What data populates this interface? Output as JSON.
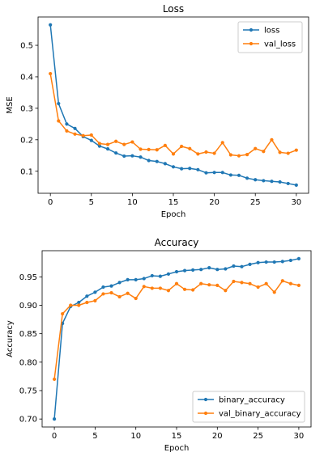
{
  "chart_data": [
    {
      "type": "line",
      "title": "Loss",
      "xlabel": "Epoch",
      "ylabel": "MSE",
      "xlim": [
        -1.5,
        31.5
      ],
      "ylim": [
        0.03,
        0.59
      ],
      "xticks": [
        0,
        5,
        10,
        15,
        20,
        25,
        30
      ],
      "yticks": [
        0.1,
        0.2,
        0.3,
        0.4,
        0.5
      ],
      "ytick_labels": [
        "0.1",
        "0.2",
        "0.3",
        "0.4",
        "0.5"
      ],
      "grid": false,
      "legend_position": "top-right",
      "x": [
        0,
        1,
        2,
        3,
        4,
        5,
        6,
        7,
        8,
        9,
        10,
        11,
        12,
        13,
        14,
        15,
        16,
        17,
        18,
        19,
        20,
        21,
        22,
        23,
        24,
        25,
        26,
        27,
        28,
        29,
        30
      ],
      "series": [
        {
          "name": "loss",
          "color": "#1f77b4",
          "values": [
            0.565,
            0.315,
            0.25,
            0.236,
            0.21,
            0.198,
            0.18,
            0.171,
            0.158,
            0.148,
            0.149,
            0.145,
            0.134,
            0.131,
            0.124,
            0.114,
            0.108,
            0.109,
            0.105,
            0.095,
            0.096,
            0.096,
            0.088,
            0.087,
            0.078,
            0.073,
            0.07,
            0.068,
            0.066,
            0.061,
            0.056
          ]
        },
        {
          "name": "val_loss",
          "color": "#ff7f0e",
          "values": [
            0.41,
            0.26,
            0.228,
            0.218,
            0.213,
            0.215,
            0.188,
            0.185,
            0.195,
            0.185,
            0.193,
            0.17,
            0.169,
            0.168,
            0.182,
            0.155,
            0.179,
            0.172,
            0.155,
            0.161,
            0.157,
            0.191,
            0.152,
            0.149,
            0.153,
            0.172,
            0.163,
            0.2,
            0.16,
            0.157,
            0.167
          ]
        }
      ]
    },
    {
      "type": "line",
      "title": "Accuracy",
      "xlabel": "Epoch",
      "ylabel": "Accuracy",
      "xlim": [
        -1.5,
        31.5
      ],
      "ylim": [
        0.686,
        0.996
      ],
      "xticks": [
        0,
        5,
        10,
        15,
        20,
        25,
        30
      ],
      "yticks": [
        0.7,
        0.75,
        0.8,
        0.85,
        0.9,
        0.95
      ],
      "ytick_labels": [
        "0.70",
        "0.75",
        "0.80",
        "0.85",
        "0.90",
        "0.95"
      ],
      "grid": false,
      "legend_position": "bottom-right",
      "x": [
        0,
        1,
        2,
        3,
        4,
        5,
        6,
        7,
        8,
        9,
        10,
        11,
        12,
        13,
        14,
        15,
        16,
        17,
        18,
        19,
        20,
        21,
        22,
        23,
        24,
        25,
        26,
        27,
        28,
        29,
        30
      ],
      "series": [
        {
          "name": "binary_accuracy",
          "color": "#1f77b4",
          "values": [
            0.7,
            0.868,
            0.898,
            0.905,
            0.916,
            0.923,
            0.932,
            0.934,
            0.94,
            0.945,
            0.945,
            0.947,
            0.952,
            0.951,
            0.955,
            0.959,
            0.961,
            0.962,
            0.963,
            0.966,
            0.963,
            0.964,
            0.969,
            0.968,
            0.972,
            0.975,
            0.976,
            0.976,
            0.977,
            0.979,
            0.982
          ]
        },
        {
          "name": "val_binary_accuracy",
          "color": "#ff7f0e",
          "values": [
            0.77,
            0.885,
            0.9,
            0.9,
            0.905,
            0.908,
            0.92,
            0.922,
            0.915,
            0.921,
            0.912,
            0.933,
            0.93,
            0.93,
            0.926,
            0.938,
            0.928,
            0.927,
            0.938,
            0.936,
            0.935,
            0.926,
            0.942,
            0.94,
            0.938,
            0.932,
            0.938,
            0.923,
            0.943,
            0.938,
            0.935
          ]
        }
      ]
    }
  ]
}
